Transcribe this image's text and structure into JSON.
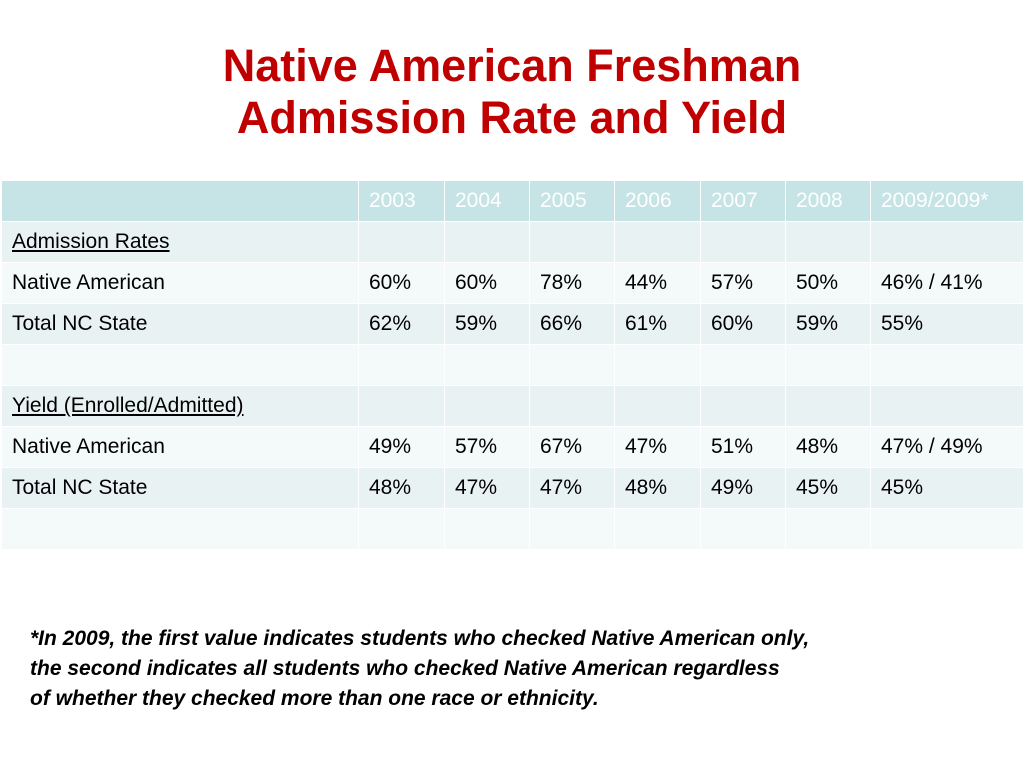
{
  "title": {
    "line1": "Native American Freshman",
    "line2": "Admission Rate and Yield"
  },
  "table": {
    "header": [
      "",
      "2003",
      "2004",
      "2005",
      "2006",
      "2007",
      "2008",
      "2009/2009*"
    ],
    "rows": [
      {
        "label": "Admission Rates",
        "cells": [
          "",
          "",
          "",
          "",
          "",
          "",
          ""
        ]
      },
      {
        "label": "Native American",
        "cells": [
          "60%",
          "60%",
          "78%",
          "44%",
          "57%",
          "50%",
          "46% / 41%"
        ]
      },
      {
        "label": "Total NC State",
        "cells": [
          "62%",
          "59%",
          "66%",
          "61%",
          "60%",
          "59%",
          "55%"
        ]
      },
      {
        "label": "",
        "cells": [
          "",
          "",
          "",
          "",
          "",
          "",
          ""
        ]
      },
      {
        "label": "Yield (Enrolled/Admitted)",
        "cells": [
          "",
          "",
          "",
          "",
          "",
          "",
          ""
        ]
      },
      {
        "label": "Native American",
        "cells": [
          "49%",
          "57%",
          "67%",
          "47%",
          "51%",
          "48%",
          "47% / 49%"
        ]
      },
      {
        "label": "Total NC State",
        "cells": [
          "48%",
          "47%",
          "47%",
          "48%",
          "49%",
          "45%",
          "45%"
        ]
      },
      {
        "label": "",
        "cells": [
          "",
          "",
          "",
          "",
          "",
          "",
          ""
        ]
      }
    ]
  },
  "footnote": {
    "line1": "*In 2009, the first value indicates students who checked Native American only,",
    "line2": "the second indicates all students who checked Native American regardless",
    "line3": "of whether they checked more than one race or ethnicity."
  }
}
